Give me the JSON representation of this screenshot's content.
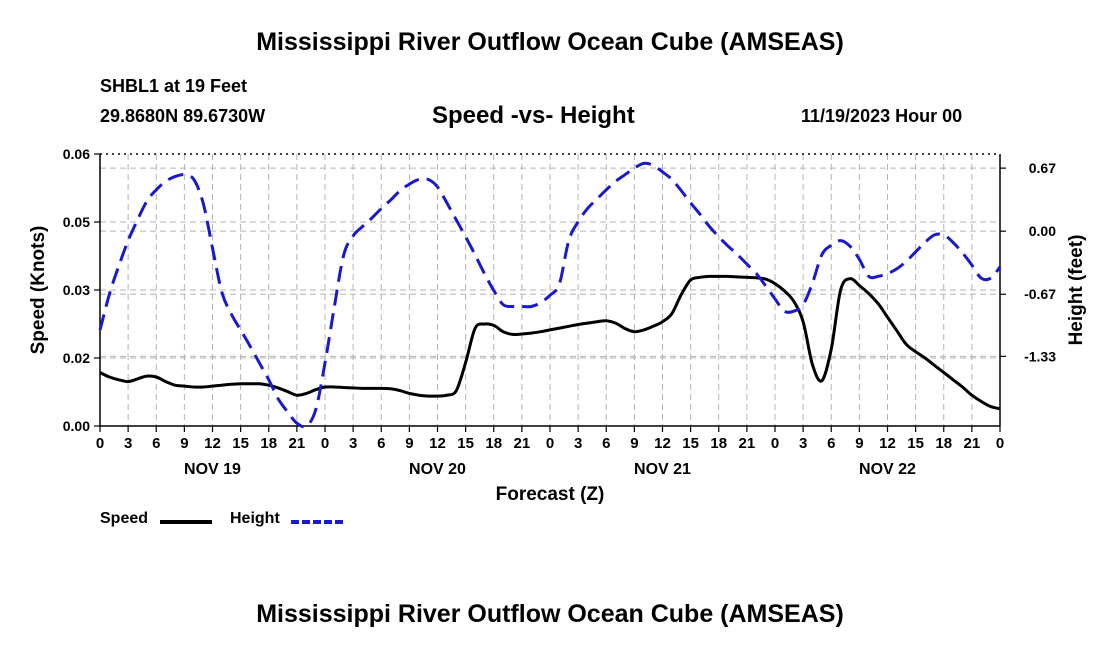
{
  "header": {
    "title": "Mississippi River Outflow Ocean Cube (AMSEAS)",
    "station": "SHBL1 at 19 Feet",
    "location": "29.8680N  89.6730W",
    "plot_title": "Speed -vs- Height",
    "datetime": "11/19/2023 Hour 00"
  },
  "footer": {
    "title": "Mississippi River Outflow Ocean Cube (AMSEAS)"
  },
  "legend": {
    "speed_label": "Speed",
    "height_label": "Height"
  },
  "colors": {
    "speed": "#000000",
    "height": "#1a1acc",
    "grid": "#b4b4b4"
  },
  "chart_data": {
    "type": "line",
    "title": "Speed -vs- Height",
    "xlabel": "Forecast (Z)",
    "ylabel": "Speed (Knots)",
    "y2label": "Height (feet)",
    "xlim": [
      0,
      96
    ],
    "ylim": [
      0,
      0.06
    ],
    "y2lim": [
      -2.07,
      0.82
    ],
    "x_tick_hours": [
      0,
      3,
      6,
      9,
      12,
      15,
      18,
      21,
      24,
      27,
      30,
      33,
      36,
      39,
      42,
      45,
      48,
      51,
      54,
      57,
      60,
      63,
      66,
      69,
      72,
      75,
      78,
      81,
      84,
      87,
      90,
      93,
      96
    ],
    "x_tick_labels": [
      "0",
      "3",
      "6",
      "9",
      "12",
      "15",
      "18",
      "21",
      "0",
      "3",
      "6",
      "9",
      "12",
      "15",
      "18",
      "21",
      "0",
      "3",
      "6",
      "9",
      "12",
      "15",
      "18",
      "21",
      "0",
      "3",
      "6",
      "9",
      "12",
      "15",
      "18",
      "21",
      "0"
    ],
    "day_labels": [
      {
        "hour": 12,
        "label": "NOV 19"
      },
      {
        "hour": 36,
        "label": "NOV 20"
      },
      {
        "hour": 60,
        "label": "NOV 21"
      },
      {
        "hour": 84,
        "label": "NOV 22"
      }
    ],
    "y_ticks": [
      0,
      0.015,
      0.03,
      0.045,
      0.06
    ],
    "y_tick_labels": [
      "0.00",
      "0.02",
      "0.03",
      "0.05",
      "0.06"
    ],
    "y2_ticks": [
      0.67,
      0.0,
      -0.67,
      -1.33
    ],
    "y2_tick_labels": [
      "0.67",
      "0.00",
      "-0.67",
      "-1.33"
    ],
    "series": [
      {
        "name": "Speed",
        "axis": "left",
        "style": "solid",
        "x": [
          0,
          1,
          2,
          3,
          4,
          5,
          6,
          7,
          8,
          9,
          10,
          11,
          12,
          13,
          14,
          15,
          16,
          17,
          18,
          19,
          20,
          21,
          22,
          23,
          24,
          25,
          26,
          27,
          28,
          29,
          30,
          31,
          32,
          33,
          34,
          35,
          36,
          37,
          38,
          39,
          40,
          41,
          42,
          43,
          44,
          45,
          46,
          47,
          48,
          49,
          50,
          51,
          52,
          53,
          54,
          55,
          56,
          57,
          58,
          59,
          60,
          61,
          62,
          63,
          64,
          65,
          66,
          67,
          68,
          69,
          70,
          71,
          72,
          73,
          74,
          75,
          76,
          77,
          78,
          79,
          80,
          81,
          82,
          83,
          84,
          85,
          86,
          87,
          88,
          89,
          90,
          91,
          92,
          93,
          94,
          95,
          96
        ],
        "values": [
          0.0118,
          0.0108,
          0.0102,
          0.0098,
          0.0104,
          0.011,
          0.0108,
          0.0098,
          0.009,
          0.0088,
          0.0086,
          0.0086,
          0.0088,
          0.009,
          0.0092,
          0.0093,
          0.0093,
          0.0093,
          0.009,
          0.0084,
          0.0076,
          0.0068,
          0.0072,
          0.008,
          0.0086,
          0.0086,
          0.0085,
          0.0084,
          0.0083,
          0.0083,
          0.0083,
          0.0082,
          0.0078,
          0.0072,
          0.0068,
          0.0066,
          0.0066,
          0.0068,
          0.0078,
          0.014,
          0.0215,
          0.0225,
          0.0222,
          0.0208,
          0.0202,
          0.0203,
          0.0205,
          0.0208,
          0.0212,
          0.0216,
          0.022,
          0.0224,
          0.0227,
          0.023,
          0.0232,
          0.0227,
          0.0215,
          0.0208,
          0.0212,
          0.022,
          0.023,
          0.0248,
          0.029,
          0.0322,
          0.0328,
          0.033,
          0.033,
          0.033,
          0.0329,
          0.0328,
          0.0327,
          0.0324,
          0.0314,
          0.0298,
          0.0275,
          0.023,
          0.0135,
          0.01,
          0.017,
          0.03,
          0.0325,
          0.031,
          0.0292,
          0.027,
          0.024,
          0.021,
          0.018,
          0.0164,
          0.015,
          0.0134,
          0.0118,
          0.0102,
          0.0086,
          0.0068,
          0.0054,
          0.0043,
          0.0038
        ]
      },
      {
        "name": "Height",
        "axis": "right",
        "style": "dashed",
        "x": [
          0,
          1,
          2,
          3,
          4,
          5,
          6,
          7,
          8,
          9,
          10,
          11,
          12,
          13,
          14,
          15,
          16,
          17,
          18,
          19,
          20,
          21,
          22,
          23,
          24,
          25,
          26,
          27,
          28,
          29,
          30,
          31,
          32,
          33,
          34,
          35,
          36,
          37,
          38,
          39,
          40,
          41,
          42,
          43,
          44,
          45,
          46,
          47,
          48,
          49,
          50,
          51,
          52,
          53,
          54,
          55,
          56,
          57,
          58,
          59,
          60,
          61,
          62,
          63,
          64,
          65,
          66,
          67,
          68,
          69,
          70,
          71,
          72,
          73,
          74,
          75,
          76,
          77,
          78,
          79,
          80,
          81,
          82,
          83,
          84,
          85,
          86,
          87,
          88,
          89,
          90,
          91,
          92,
          93,
          94,
          95,
          96
        ],
        "values": [
          -1.05,
          -0.67,
          -0.37,
          -0.1,
          0.12,
          0.32,
          0.44,
          0.53,
          0.58,
          0.6,
          0.55,
          0.3,
          -0.18,
          -0.65,
          -0.88,
          -1.05,
          -1.22,
          -1.4,
          -1.58,
          -1.78,
          -1.92,
          -2.04,
          -2.07,
          -1.9,
          -1.4,
          -0.8,
          -0.25,
          -0.05,
          0.05,
          0.14,
          0.24,
          0.33,
          0.43,
          0.5,
          0.55,
          0.55,
          0.47,
          0.3,
          0.12,
          -0.06,
          -0.25,
          -0.45,
          -0.63,
          -0.78,
          -0.8,
          -0.8,
          -0.8,
          -0.76,
          -0.68,
          -0.56,
          -0.1,
          0.1,
          0.24,
          0.34,
          0.44,
          0.53,
          0.6,
          0.67,
          0.72,
          0.7,
          0.63,
          0.55,
          0.43,
          0.3,
          0.18,
          0.05,
          -0.06,
          -0.16,
          -0.25,
          -0.35,
          -0.45,
          -0.58,
          -0.72,
          -0.85,
          -0.85,
          -0.78,
          -0.55,
          -0.25,
          -0.15,
          -0.1,
          -0.16,
          -0.3,
          -0.48,
          -0.48,
          -0.45,
          -0.4,
          -0.32,
          -0.22,
          -0.12,
          -0.04,
          -0.04,
          -0.12,
          -0.23,
          -0.36,
          -0.5,
          -0.5,
          -0.38
        ]
      }
    ]
  }
}
